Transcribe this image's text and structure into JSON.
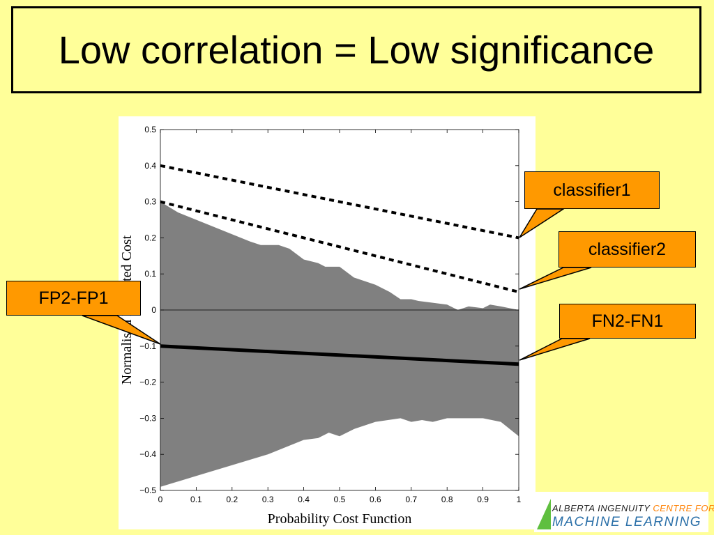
{
  "slide": {
    "title": "Low correlation = Low significance"
  },
  "callouts": {
    "classifier1": "classifier1",
    "classifier2": "classifier2",
    "fp2_fp1": "FP2-FP1",
    "fn2_fn1": "FN2-FN1"
  },
  "logo": {
    "line1_prefix": "ALBERTA INGENUITY",
    "line1_accent": "CENTRE FOR",
    "line2": "MACHINE LEARNING"
  },
  "colors": {
    "background": "#ffff99",
    "callout_fill": "#ff9900",
    "band_fill": "#808080"
  },
  "chart_data": {
    "type": "line",
    "xlabel": "Probability Cost Function",
    "ylabel": "Normalised Expected Cost",
    "xlim": [
      0,
      1
    ],
    "ylim": [
      -0.5,
      0.5
    ],
    "x_ticks": [
      "0",
      "0.1",
      "0.2",
      "0.3",
      "0.4",
      "0.5",
      "0.6",
      "0.7",
      "0.8",
      "0.9",
      "1"
    ],
    "y_ticks": [
      "0.5",
      "0.4",
      "0.3",
      "0.2",
      "0.1",
      "0",
      "−0.1",
      "−0.2",
      "−0.3",
      "−0.4",
      "−0.5"
    ],
    "series": [
      {
        "name": "classifier1",
        "style": "dashed",
        "x": [
          0,
          1
        ],
        "y": [
          0.4,
          0.2
        ]
      },
      {
        "name": "classifier2",
        "style": "dashed",
        "x": [
          0,
          1
        ],
        "y": [
          0.3,
          0.05
        ]
      },
      {
        "name": "FN2-FN1",
        "style": "solid",
        "x": [
          0,
          1
        ],
        "y": [
          -0.1,
          -0.15
        ]
      }
    ],
    "band": {
      "upper": [
        [
          0,
          0.3
        ],
        [
          0.05,
          0.27
        ],
        [
          0.1,
          0.25
        ],
        [
          0.15,
          0.23
        ],
        [
          0.2,
          0.21
        ],
        [
          0.25,
          0.19
        ],
        [
          0.28,
          0.18
        ],
        [
          0.33,
          0.18
        ],
        [
          0.36,
          0.17
        ],
        [
          0.4,
          0.14
        ],
        [
          0.44,
          0.13
        ],
        [
          0.46,
          0.12
        ],
        [
          0.5,
          0.12
        ],
        [
          0.54,
          0.09
        ],
        [
          0.6,
          0.07
        ],
        [
          0.64,
          0.05
        ],
        [
          0.67,
          0.03
        ],
        [
          0.7,
          0.03
        ],
        [
          0.72,
          0.025
        ],
        [
          0.76,
          0.02
        ],
        [
          0.8,
          0.015
        ],
        [
          0.83,
          0.0
        ],
        [
          0.86,
          0.01
        ],
        [
          0.9,
          0.005
        ],
        [
          0.92,
          0.015
        ],
        [
          0.95,
          0.01
        ],
        [
          1.0,
          0.0
        ]
      ],
      "lower": [
        [
          0,
          -0.49
        ],
        [
          0.1,
          -0.46
        ],
        [
          0.2,
          -0.43
        ],
        [
          0.3,
          -0.4
        ],
        [
          0.4,
          -0.36
        ],
        [
          0.44,
          -0.355
        ],
        [
          0.47,
          -0.34
        ],
        [
          0.5,
          -0.35
        ],
        [
          0.54,
          -0.33
        ],
        [
          0.6,
          -0.31
        ],
        [
          0.67,
          -0.3
        ],
        [
          0.7,
          -0.31
        ],
        [
          0.73,
          -0.305
        ],
        [
          0.76,
          -0.31
        ],
        [
          0.8,
          -0.3
        ],
        [
          0.85,
          -0.3
        ],
        [
          0.9,
          -0.3
        ],
        [
          0.95,
          -0.31
        ],
        [
          1.0,
          -0.35
        ]
      ]
    }
  }
}
